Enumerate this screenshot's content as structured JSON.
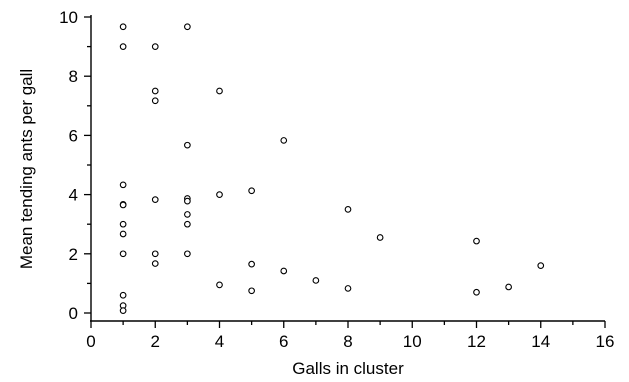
{
  "chart_data": {
    "type": "scatter",
    "xlabel": "Galls in cluster",
    "ylabel": "Mean tending ants per gall",
    "xlim": [
      0,
      16
    ],
    "ylim": [
      0,
      10
    ],
    "x_ticks": [
      0,
      2,
      4,
      6,
      8,
      10,
      12,
      14,
      16
    ],
    "y_ticks": [
      0,
      2,
      4,
      6,
      8,
      10
    ],
    "grid": false,
    "series": [
      {
        "points": [
          {
            "x": 1,
            "y": 9.67
          },
          {
            "x": 1,
            "y": 9.0
          },
          {
            "x": 1,
            "y": 4.33
          },
          {
            "x": 1,
            "y": 3.67
          },
          {
            "x": 1,
            "y": 3.65
          },
          {
            "x": 1,
            "y": 3.0
          },
          {
            "x": 1,
            "y": 2.67
          },
          {
            "x": 1,
            "y": 2.0
          },
          {
            "x": 1,
            "y": 0.6
          },
          {
            "x": 1,
            "y": 0.25
          },
          {
            "x": 1,
            "y": 0.08
          },
          {
            "x": 2,
            "y": 9.0
          },
          {
            "x": 2,
            "y": 7.5
          },
          {
            "x": 2,
            "y": 7.17
          },
          {
            "x": 2,
            "y": 3.83
          },
          {
            "x": 2,
            "y": 2.0
          },
          {
            "x": 2,
            "y": 1.67
          },
          {
            "x": 3,
            "y": 9.67
          },
          {
            "x": 3,
            "y": 5.67
          },
          {
            "x": 3,
            "y": 3.87
          },
          {
            "x": 3,
            "y": 3.78
          },
          {
            "x": 3,
            "y": 3.33
          },
          {
            "x": 3,
            "y": 3.0
          },
          {
            "x": 3,
            "y": 2.0
          },
          {
            "x": 4,
            "y": 7.5
          },
          {
            "x": 4,
            "y": 4.0
          },
          {
            "x": 4,
            "y": 0.95
          },
          {
            "x": 5,
            "y": 4.13
          },
          {
            "x": 5,
            "y": 1.65
          },
          {
            "x": 5,
            "y": 0.75
          },
          {
            "x": 6,
            "y": 5.83
          },
          {
            "x": 6,
            "y": 1.42
          },
          {
            "x": 7,
            "y": 1.1
          },
          {
            "x": 8,
            "y": 3.5
          },
          {
            "x": 8,
            "y": 0.83
          },
          {
            "x": 9,
            "y": 2.55
          },
          {
            "x": 12,
            "y": 2.43
          },
          {
            "x": 12,
            "y": 0.7
          },
          {
            "x": 13,
            "y": 0.88
          },
          {
            "x": 14,
            "y": 1.6
          }
        ]
      }
    ]
  }
}
